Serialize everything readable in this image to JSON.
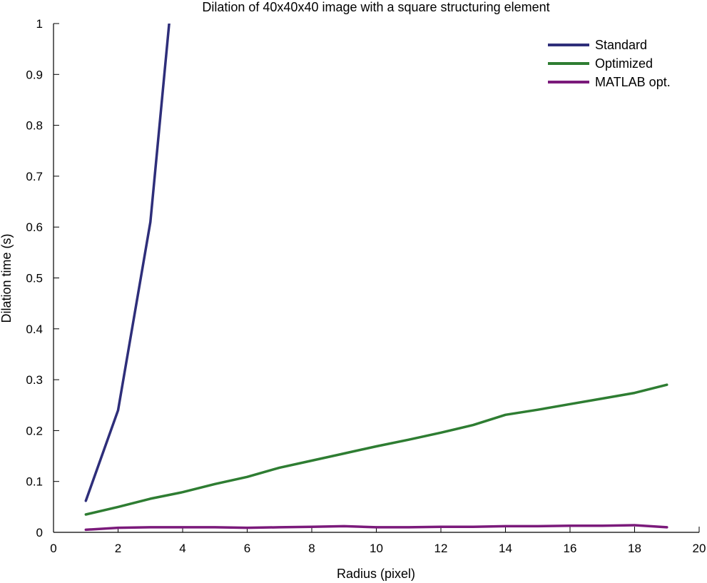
{
  "chart_data": {
    "type": "line",
    "title": "Dilation of 40x40x40 image with a square structuring element",
    "xlabel": "Radius (pixel)",
    "ylabel": "Dilation time (s)",
    "xlim": [
      0,
      20
    ],
    "ylim": [
      0,
      1
    ],
    "xticks": [
      0,
      2,
      4,
      6,
      8,
      10,
      12,
      14,
      16,
      18,
      20
    ],
    "yticks": [
      0,
      0.1,
      0.2,
      0.3,
      0.4,
      0.5,
      0.6,
      0.7,
      0.8,
      0.9,
      1
    ],
    "xtick_labels": [
      "0",
      "2",
      "4",
      "6",
      "8",
      "10",
      "12",
      "14",
      "16",
      "18",
      "20"
    ],
    "ytick_labels": [
      "0",
      "0.1",
      "0.2",
      "0.3",
      "0.4",
      "0.5",
      "0.6",
      "0.7",
      "0.8",
      "0.9",
      "1"
    ],
    "grid": false,
    "legend_position": "top-right",
    "series": [
      {
        "name": "Standard",
        "color": "#2e2e7a",
        "x": [
          1,
          2,
          3,
          4
        ],
        "y": [
          0.062,
          0.24,
          0.61,
          1.28
        ]
      },
      {
        "name": "Optimized",
        "color": "#2e7d32",
        "x": [
          1,
          2,
          3,
          4,
          5,
          6,
          7,
          8,
          9,
          10,
          11,
          12,
          13,
          14,
          15,
          16,
          17,
          18,
          19
        ],
        "y": [
          0.035,
          0.05,
          0.066,
          0.079,
          0.095,
          0.109,
          0.127,
          0.141,
          0.155,
          0.169,
          0.182,
          0.196,
          0.211,
          0.231,
          0.241,
          0.252,
          0.263,
          0.274,
          0.29
        ]
      },
      {
        "name": "MATLAB opt.",
        "color": "#7b1a7b",
        "x": [
          1,
          2,
          3,
          4,
          5,
          6,
          7,
          8,
          9,
          10,
          11,
          12,
          13,
          14,
          15,
          16,
          17,
          18,
          19
        ],
        "y": [
          0.005,
          0.009,
          0.01,
          0.01,
          0.01,
          0.009,
          0.01,
          0.011,
          0.012,
          0.01,
          0.01,
          0.011,
          0.011,
          0.012,
          0.012,
          0.013,
          0.013,
          0.014,
          0.01
        ]
      }
    ]
  }
}
